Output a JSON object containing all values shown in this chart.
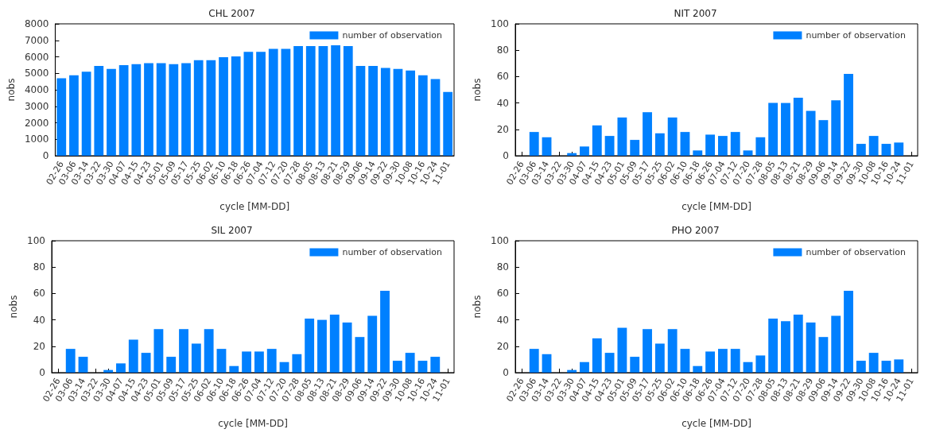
{
  "chart_data": [
    {
      "type": "bar",
      "title": "CHL 2007",
      "xlabel": "cycle [MM-DD]",
      "ylabel": "nobs",
      "categories": [
        "02-26",
        "03-06",
        "03-14",
        "03-22",
        "03-30",
        "04-07",
        "04-15",
        "04-23",
        "05-01",
        "05-09",
        "05-17",
        "05-25",
        "06-02",
        "06-10",
        "06-18",
        "06-26",
        "07-04",
        "07-12",
        "07-20",
        "07-28",
        "08-05",
        "08-13",
        "08-21",
        "08-29",
        "09-06",
        "09-14",
        "09-22",
        "09-30",
        "10-08",
        "10-16",
        "10-24",
        "11-01"
      ],
      "series": [
        {
          "name": "number of observation",
          "color": "#0080ff",
          "values": [
            4700,
            4880,
            5100,
            5450,
            5270,
            5500,
            5550,
            5620,
            5620,
            5560,
            5620,
            5800,
            5800,
            5970,
            6020,
            6300,
            6300,
            6480,
            6480,
            6650,
            6650,
            6650,
            6700,
            6650,
            5450,
            5450,
            5330,
            5270,
            5170,
            4880,
            4650,
            3870
          ]
        }
      ],
      "ylim": [
        0,
        8000
      ],
      "yticks": [
        0,
        1000,
        2000,
        3000,
        4000,
        5000,
        6000,
        7000,
        8000
      ],
      "grid": false,
      "legend": "top right"
    },
    {
      "type": "bar",
      "title": "NIT 2007",
      "xlabel": "cycle [MM-DD]",
      "ylabel": "nobs",
      "categories": [
        "02-26",
        "03-06",
        "03-14",
        "03-22",
        "03-30",
        "04-07",
        "04-15",
        "04-23",
        "05-01",
        "05-09",
        "05-17",
        "05-25",
        "06-02",
        "06-10",
        "06-18",
        "06-26",
        "07-04",
        "07-12",
        "07-20",
        "07-28",
        "08-05",
        "08-13",
        "08-21",
        "08-29",
        "09-06",
        "09-14",
        "09-22",
        "09-30",
        "10-08",
        "10-16",
        "10-24",
        "11-01"
      ],
      "series": [
        {
          "name": "number of observation",
          "color": "#0080ff",
          "values": [
            0,
            18,
            14,
            0,
            2,
            7,
            23,
            15,
            29,
            12,
            33,
            17,
            29,
            18,
            4,
            16,
            15,
            18,
            4,
            14,
            40,
            40,
            44,
            34,
            27,
            42,
            62,
            9,
            15,
            9,
            10,
            0
          ]
        }
      ],
      "ylim": [
        0,
        100
      ],
      "yticks": [
        0,
        20,
        40,
        60,
        80,
        100
      ],
      "grid": false,
      "legend": "top right"
    },
    {
      "type": "bar",
      "title": "SIL 2007",
      "xlabel": "cycle [MM-DD]",
      "ylabel": "nobs",
      "categories": [
        "02-26",
        "03-06",
        "03-14",
        "03-22",
        "03-30",
        "04-07",
        "04-15",
        "04-23",
        "05-01",
        "05-09",
        "05-17",
        "05-25",
        "06-02",
        "06-10",
        "06-18",
        "06-26",
        "07-04",
        "07-12",
        "07-20",
        "07-28",
        "08-05",
        "08-13",
        "08-21",
        "08-29",
        "09-06",
        "09-14",
        "09-22",
        "09-30",
        "10-08",
        "10-16",
        "10-24",
        "11-01"
      ],
      "series": [
        {
          "name": "number of observation",
          "color": "#0080ff",
          "values": [
            0,
            18,
            12,
            0,
            2,
            7,
            25,
            15,
            33,
            12,
            33,
            22,
            33,
            18,
            5,
            16,
            16,
            18,
            8,
            14,
            41,
            40,
            44,
            38,
            27,
            43,
            62,
            9,
            15,
            9,
            12,
            0
          ]
        }
      ],
      "ylim": [
        0,
        100
      ],
      "yticks": [
        0,
        20,
        40,
        60,
        80,
        100
      ],
      "grid": false,
      "legend": "top right"
    },
    {
      "type": "bar",
      "title": "PHO 2007",
      "xlabel": "cycle [MM-DD]",
      "ylabel": "nobs",
      "categories": [
        "02-26",
        "03-06",
        "03-14",
        "03-22",
        "03-30",
        "04-07",
        "04-15",
        "04-23",
        "05-01",
        "05-09",
        "05-17",
        "05-25",
        "06-02",
        "06-10",
        "06-18",
        "06-26",
        "07-04",
        "07-12",
        "07-20",
        "07-28",
        "08-05",
        "08-13",
        "08-21",
        "08-29",
        "09-06",
        "09-14",
        "09-22",
        "09-30",
        "10-08",
        "10-16",
        "10-24",
        "11-01"
      ],
      "series": [
        {
          "name": "number of observation",
          "color": "#0080ff",
          "values": [
            0,
            18,
            14,
            0,
            2,
            8,
            26,
            15,
            34,
            12,
            33,
            22,
            33,
            18,
            5,
            16,
            18,
            18,
            8,
            13,
            41,
            39,
            44,
            38,
            27,
            43,
            62,
            9,
            15,
            9,
            10,
            0
          ]
        }
      ],
      "ylim": [
        0,
        100
      ],
      "yticks": [
        0,
        20,
        40,
        60,
        80,
        100
      ],
      "grid": false,
      "legend": "top right"
    }
  ]
}
